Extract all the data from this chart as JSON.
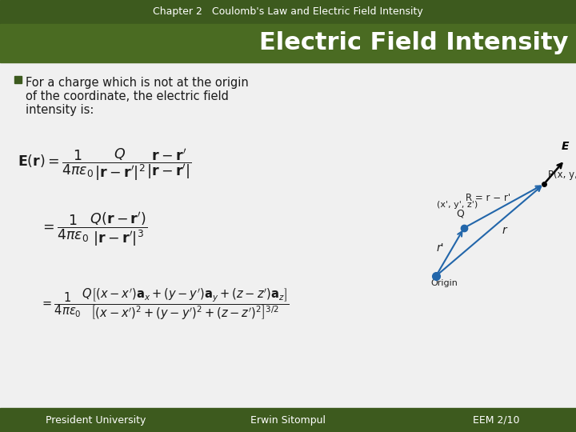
{
  "top_bar_color": "#3d5a1e",
  "title_bar_color": "#4a6b22",
  "slide_bg": "#f0f0f0",
  "bottom_bar_color": "#3d5a1e",
  "top_text": "Chapter 2   Coulomb's Law and Electric Field Intensity",
  "slide_title": "Electric Field Intensity",
  "footer_left": "President University",
  "footer_center": "Erwin Sitompul",
  "footer_right": "EEM 2/10",
  "bullet_line1": "For a charge which is not at the origin",
  "bullet_line2": "of the coordinate, the electric field",
  "bullet_line3": "intensity is:",
  "top_bar_height": 0.055,
  "title_bar_height": 0.09,
  "bottom_bar_height": 0.055,
  "title_color": "#ffffff",
  "top_text_color": "#ffffff",
  "bullet_color": "#1a1a1a",
  "bullet_marker_color": "#3d5a1e",
  "diagram_arrow_color": "#2266aa",
  "diagram_label_color": "#222222",
  "origin_dot_color": "#2266aa",
  "charge_dot_color": "#2266aa"
}
